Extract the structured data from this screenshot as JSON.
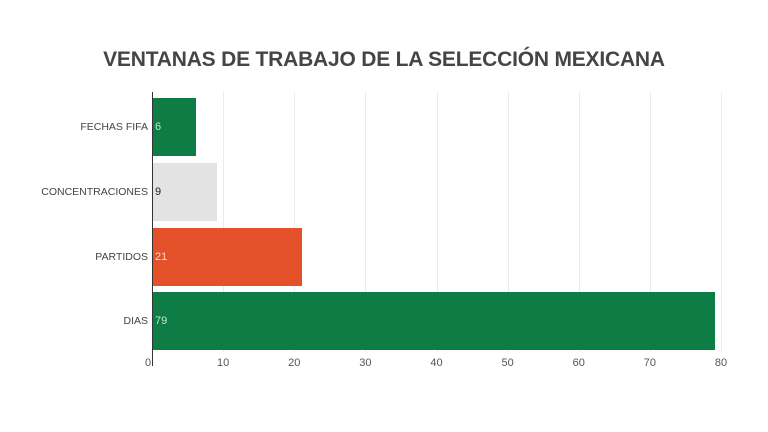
{
  "chart_data": {
    "type": "bar",
    "orientation": "horizontal",
    "title": "VENTANAS DE TRABAJO DE LA SELECCIÓN MEXICANA",
    "categories": [
      "FECHAS FIFA",
      "CONCENTRACIONES",
      "PARTIDOS",
      "DIAS"
    ],
    "values": [
      6,
      9,
      21,
      79
    ],
    "colors": [
      "#0d7c45",
      "#e3e3e3",
      "#e4502a",
      "#0d7c45"
    ],
    "label_colors": [
      "#bfe9cf",
      "#222222",
      "#ffd9c9",
      "#bfe9cf"
    ],
    "xlabel": "",
    "ylabel": "",
    "xlim": [
      0,
      80
    ],
    "ticks": [
      "0",
      "10",
      "20",
      "30",
      "40",
      "50",
      "60",
      "70",
      "80"
    ],
    "grid": true,
    "legend": "none"
  }
}
